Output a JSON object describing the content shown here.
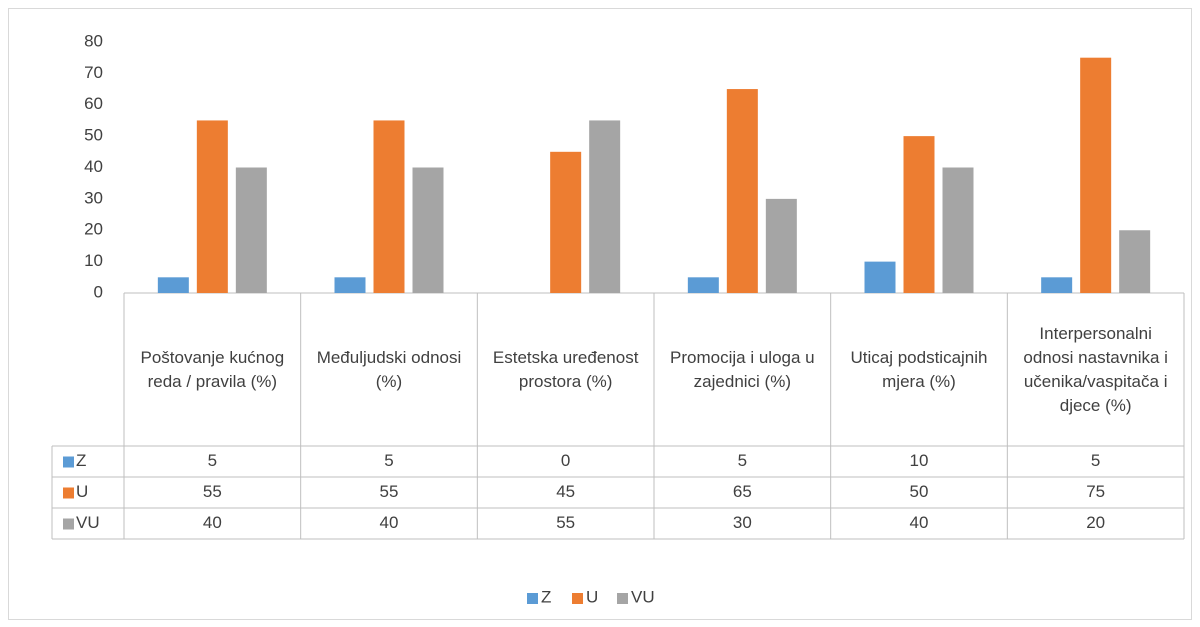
{
  "chart_data": {
    "type": "bar",
    "categories": [
      "Poštovanje kućnog reda / pravila (%)",
      "Međuljudski odnosi (%)",
      "Estetska uređenost prostora (%)",
      "Promocija i uloga u zajednici (%)",
      "Uticaj podsticajnih mjera (%)",
      "Interpersonalni odnosi nastavnika i učenika/vaspitača i djece (%)"
    ],
    "series": [
      {
        "name": "Z",
        "color": "#5b9bd5",
        "values": [
          5,
          5,
          0,
          5,
          10,
          5
        ]
      },
      {
        "name": "U",
        "color": "#ed7d31",
        "values": [
          55,
          55,
          45,
          65,
          50,
          75
        ]
      },
      {
        "name": "VU",
        "color": "#a5a5a5",
        "values": [
          40,
          40,
          55,
          30,
          40,
          20
        ]
      }
    ],
    "ylim": [
      0,
      80
    ],
    "yticks": [
      0,
      10,
      20,
      30,
      40,
      50,
      60,
      70,
      80
    ],
    "grid": false,
    "data_table": true,
    "legend": "bottom"
  }
}
